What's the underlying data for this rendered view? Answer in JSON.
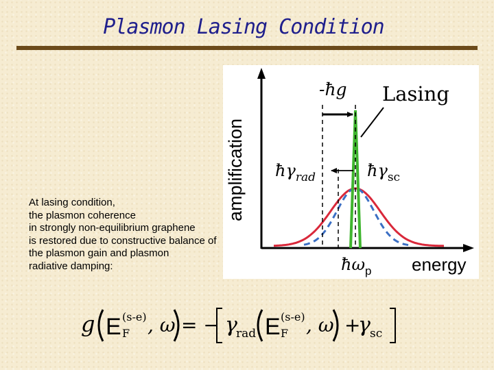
{
  "slide": {
    "title": "Plasmon Lasing Condition",
    "caption_lines": [
      "At lasing condition,",
      "the plasmon coherence",
      "in strongly non-equilibrium graphene",
      "is restored due to constructive balance of",
      "the plasmon gain and plasmon",
      "radiative damping:"
    ]
  },
  "figure": {
    "y_axis_label": "amplification",
    "x_axis_label": "energy",
    "lasing_label": "Lasing",
    "label_gain": "-ħg",
    "label_gamma_rad_prefix": "ħγ",
    "label_gamma_rad_sub": "rad",
    "label_gamma_sc_prefix": "ħγ",
    "label_gamma_sc_sub": "sc",
    "label_omega_prefix": "ħω",
    "label_omega_sub": "p",
    "colors": {
      "broad_curve": "#d9283a",
      "dashed_curve": "#3b6fc4",
      "lasing_peak": "#3fb52e",
      "axes": "#000000"
    }
  },
  "formula": {
    "g": "g",
    "E": "E",
    "sup": "(s-e)",
    "sub": "F",
    "omega_part": ", ω",
    "equals_minus": "= −",
    "gamma": "γ",
    "rad": "rad",
    "plus": "+",
    "sc": "sc"
  }
}
